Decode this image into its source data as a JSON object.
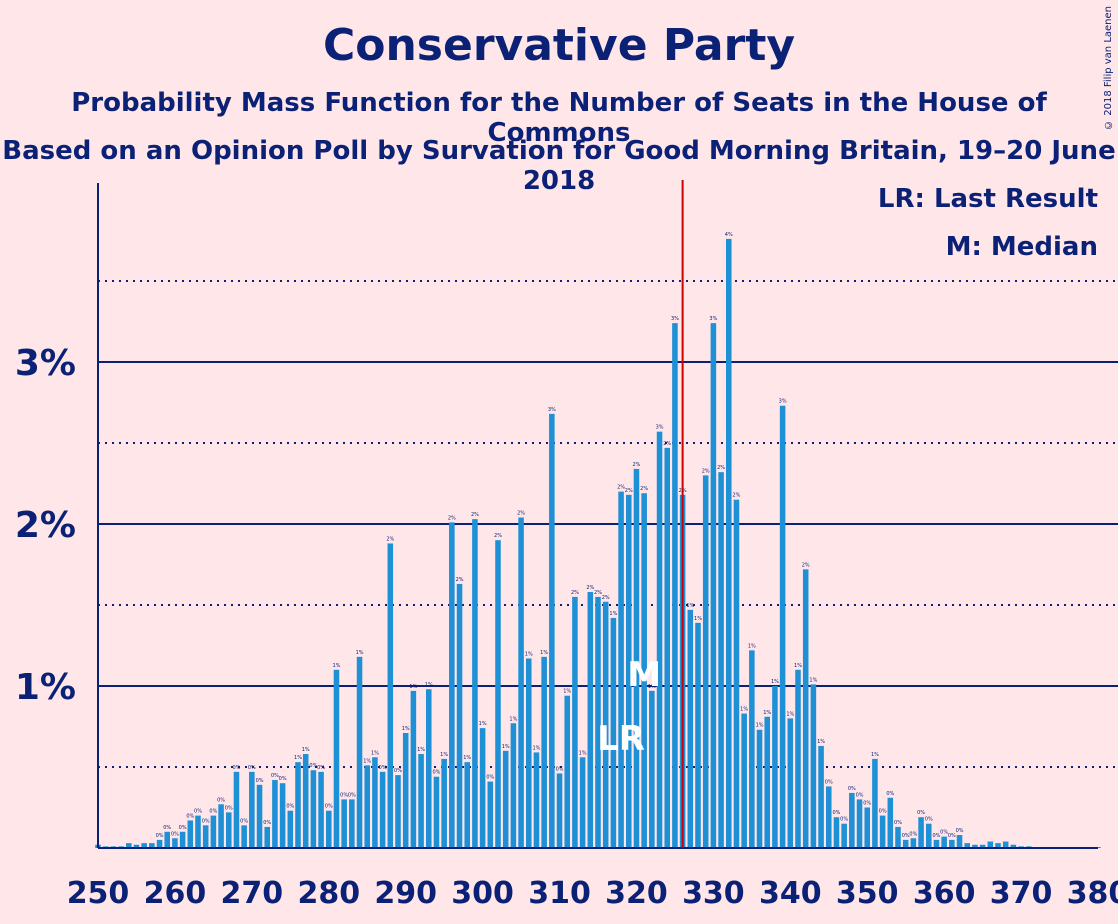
{
  "header": {
    "title": "Conservative Party",
    "subtitle": "Probability Mass Function for the Number of Seats in the House of Commons",
    "subtitle2": "Based on an Opinion Poll by Survation for Good Morning Britain, 19–20 June 2018"
  },
  "legend": {
    "last_result": "LR: Last Result",
    "median": "M: Median"
  },
  "copyright": "© 2018 Filip van Laenen",
  "colors": {
    "background": "#FFE6E9",
    "bar": "#1E90D6",
    "axis": "#0B2175",
    "last_result_line": "#CC0000"
  },
  "chart_data": {
    "type": "bar",
    "xlim": [
      250,
      380
    ],
    "ylim": [
      0,
      4
    ],
    "x_ticks": [
      "250",
      "260",
      "270",
      "280",
      "290",
      "300",
      "310",
      "320",
      "330",
      "340",
      "350",
      "360",
      "370",
      "380"
    ],
    "y_ticks": [
      "1%",
      "2%",
      "3%"
    ],
    "last_result_seat": 326,
    "median_seat": 321,
    "markers": {
      "last_result": "LR",
      "median": "M"
    },
    "x": [
      250,
      251,
      252,
      253,
      254,
      255,
      256,
      257,
      258,
      259,
      260,
      261,
      262,
      263,
      264,
      265,
      266,
      267,
      268,
      269,
      270,
      271,
      272,
      273,
      274,
      275,
      276,
      277,
      278,
      279,
      280,
      281,
      282,
      283,
      284,
      285,
      286,
      287,
      288,
      289,
      290,
      291,
      292,
      293,
      294,
      295,
      296,
      297,
      298,
      299,
      300,
      301,
      302,
      303,
      304,
      305,
      306,
      307,
      308,
      309,
      310,
      311,
      312,
      313,
      314,
      315,
      316,
      317,
      318,
      319,
      320,
      321,
      322,
      323,
      324,
      325,
      326,
      327,
      328,
      329,
      330,
      331,
      332,
      333,
      334,
      335,
      336,
      337,
      338,
      339,
      340,
      341,
      342,
      343,
      344,
      345,
      346,
      347,
      348,
      349,
      350,
      351,
      352,
      353,
      354,
      355,
      356,
      357,
      358,
      359,
      360,
      361,
      362,
      363,
      364,
      365,
      366,
      367,
      368,
      369,
      370,
      371,
      372,
      373,
      374,
      375,
      376,
      377,
      378,
      379,
      380
    ],
    "values": [
      0.02,
      0.01,
      0.01,
      0.01,
      0.03,
      0.02,
      0.03,
      0.03,
      0.05,
      0.1,
      0.06,
      0.1,
      0.17,
      0.2,
      0.14,
      0.2,
      0.27,
      0.22,
      0.47,
      0.14,
      0.47,
      0.39,
      0.13,
      0.42,
      0.4,
      0.23,
      0.53,
      0.58,
      0.48,
      0.47,
      0.23,
      1.1,
      0.3,
      0.3,
      1.18,
      0.51,
      0.56,
      0.47,
      1.88,
      0.45,
      0.71,
      0.97,
      0.58,
      0.98,
      0.44,
      0.55,
      2.01,
      1.63,
      0.53,
      2.03,
      0.74,
      0.41,
      1.9,
      0.6,
      0.77,
      2.04,
      1.17,
      0.59,
      1.18,
      2.68,
      0.46,
      0.94,
      1.55,
      0.56,
      1.58,
      1.55,
      1.52,
      1.42,
      2.2,
      2.18,
      2.34,
      2.19,
      0.97,
      2.57,
      2.47,
      3.24,
      2.18,
      1.47,
      1.39,
      2.3,
      3.24,
      2.32,
      3.76,
      2.15,
      0.83,
      1.22,
      0.73,
      0.81,
      1.0,
      2.73,
      0.8,
      1.1,
      1.72,
      1.01,
      0.63,
      0.38,
      0.19,
      0.15,
      0.34,
      0.3,
      0.25,
      0.55,
      0.2,
      0.31,
      0.13,
      0.05,
      0.06,
      0.19,
      0.15,
      0.05,
      0.07,
      0.05,
      0.08,
      0.03,
      0.02,
      0.02,
      0.04,
      0.03,
      0.04,
      0.02,
      0.01,
      0.01,
      0.005,
      0.005,
      0.005,
      0.005,
      0.005,
      0.005,
      0.005,
      0.005,
      0.005
    ]
  }
}
